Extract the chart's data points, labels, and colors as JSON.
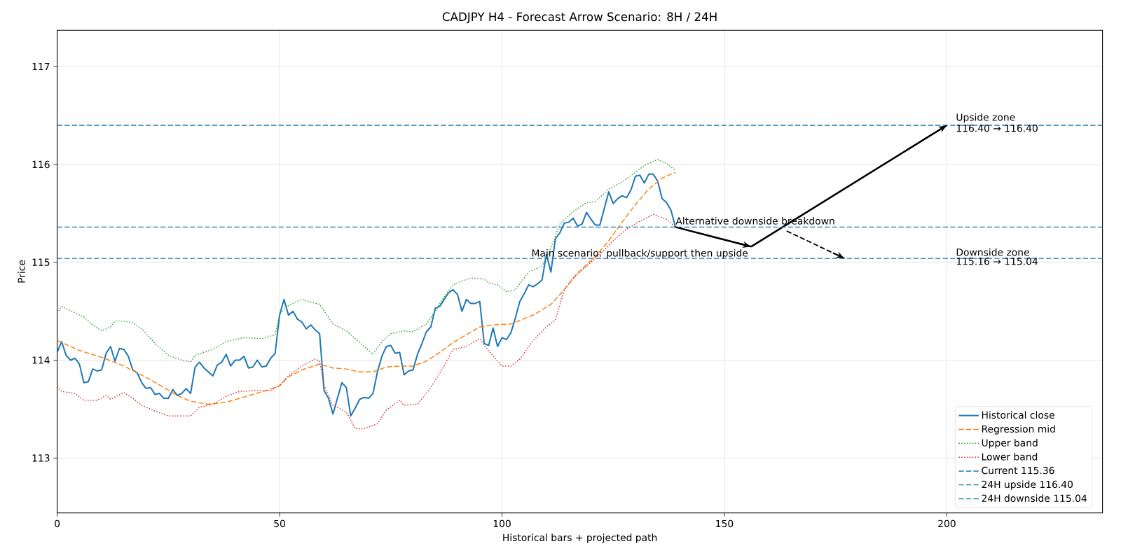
{
  "chart_data": {
    "type": "line",
    "title": "CADJPY H4 - Forecast Arrow Scenario: 8H / 24H",
    "xlabel": "Historical bars + projected path",
    "ylabel": "Price",
    "xlim": [
      0,
      235
    ],
    "ylim": [
      112.44,
      117.37
    ],
    "xticks": [
      0,
      50,
      100,
      150,
      200
    ],
    "yticks": [
      113,
      114,
      115,
      116,
      117
    ],
    "grid": true,
    "legend": "bottom right",
    "series": [
      {
        "name": "Historical close",
        "color": "#1f77b4",
        "line_style": "solid",
        "x": [
          0,
          1,
          2,
          3,
          4,
          5,
          6,
          7,
          8,
          9,
          10,
          11,
          12,
          13,
          14,
          15,
          16,
          17,
          18,
          19,
          20,
          21,
          22,
          23,
          24,
          25,
          26,
          27,
          28,
          29,
          30,
          31,
          32,
          33,
          34,
          35,
          36,
          37,
          38,
          39,
          40,
          41,
          42,
          43,
          44,
          45,
          46,
          47,
          48,
          49,
          50,
          51,
          52,
          53,
          54,
          55,
          56,
          57,
          58,
          59,
          60,
          61,
          62,
          63,
          64,
          65,
          66,
          67,
          68,
          69,
          70,
          71,
          72,
          73,
          74,
          75,
          76,
          77,
          78,
          79,
          80,
          81,
          82,
          83,
          84,
          85,
          86,
          87,
          88,
          89,
          90,
          91,
          92,
          93,
          94,
          95,
          96,
          97,
          98,
          99,
          100,
          101,
          102,
          103,
          104,
          105,
          106,
          107,
          108,
          109,
          110,
          111,
          112,
          113,
          114,
          115,
          116,
          117,
          118,
          119,
          120,
          121,
          122,
          123,
          124,
          125,
          126,
          127,
          128,
          129,
          130,
          131,
          132,
          133,
          134,
          135,
          136,
          137,
          138,
          139
        ],
        "values": [
          114.08,
          114.19,
          114.05,
          114.0,
          114.02,
          113.96,
          113.77,
          113.78,
          113.91,
          113.89,
          113.9,
          114.07,
          114.14,
          113.99,
          114.12,
          114.11,
          114.04,
          113.9,
          113.87,
          113.77,
          113.71,
          113.72,
          113.65,
          113.66,
          113.61,
          113.61,
          113.7,
          113.64,
          113.66,
          113.71,
          113.66,
          113.93,
          113.98,
          113.92,
          113.88,
          113.84,
          113.95,
          113.98,
          114.06,
          113.94,
          114.0,
          114.0,
          114.04,
          113.92,
          113.93,
          114.0,
          113.93,
          113.94,
          114.02,
          114.07,
          114.46,
          114.62,
          114.46,
          114.5,
          114.42,
          114.39,
          114.32,
          114.36,
          114.31,
          114.27,
          113.69,
          113.61,
          113.45,
          113.61,
          113.77,
          113.72,
          113.43,
          113.51,
          113.6,
          113.62,
          113.61,
          113.66,
          113.88,
          114.04,
          114.14,
          114.15,
          114.07,
          114.08,
          113.85,
          113.89,
          113.9,
          114.06,
          114.17,
          114.29,
          114.34,
          114.53,
          114.55,
          114.62,
          114.69,
          114.72,
          114.67,
          114.5,
          114.62,
          114.58,
          114.58,
          114.6,
          114.17,
          114.15,
          114.33,
          114.14,
          114.23,
          114.21,
          114.28,
          114.43,
          114.6,
          114.68,
          114.77,
          114.75,
          114.78,
          114.82,
          115.08,
          114.9,
          115.24,
          115.3,
          115.4,
          115.41,
          115.45,
          115.37,
          115.39,
          115.51,
          115.44,
          115.38,
          115.38,
          115.55,
          115.72,
          115.6,
          115.65,
          115.68,
          115.66,
          115.74,
          115.88,
          115.89,
          115.81,
          115.9,
          115.9,
          115.83,
          115.65,
          115.61,
          115.53,
          115.36
        ]
      },
      {
        "name": "Regression mid",
        "color": "#ff7f0e",
        "line_style": "dashed",
        "x": [
          0,
          5,
          7,
          10,
          15,
          18,
          21,
          24,
          27,
          30,
          34,
          38,
          41,
          44,
          47,
          50,
          52,
          55,
          59,
          62,
          65,
          68,
          71,
          74,
          77,
          80,
          83,
          86,
          89,
          92,
          95,
          98,
          102,
          107,
          111,
          114,
          117,
          121,
          124,
          127,
          130,
          133,
          136,
          139
        ],
        "values": [
          114.2,
          114.1,
          114.07,
          114.03,
          113.94,
          113.87,
          113.8,
          113.72,
          113.64,
          113.58,
          113.55,
          113.57,
          113.61,
          113.65,
          113.69,
          113.74,
          113.83,
          113.9,
          113.96,
          113.92,
          113.91,
          113.88,
          113.88,
          113.93,
          113.94,
          113.94,
          113.99,
          114.08,
          114.18,
          114.26,
          114.34,
          114.36,
          114.37,
          114.46,
          114.57,
          114.72,
          114.89,
          115.06,
          115.22,
          115.41,
          115.59,
          115.75,
          115.86,
          115.92
        ]
      },
      {
        "name": "Upper band",
        "color": "#2ca02c",
        "line_style": "dotted",
        "x": [
          0,
          1,
          6,
          8,
          10,
          12,
          13,
          15,
          17,
          19,
          22,
          25,
          28,
          30,
          31,
          35,
          38,
          42,
          46,
          49,
          50,
          52,
          55,
          59,
          62,
          65,
          68,
          71,
          73,
          75,
          78,
          80,
          83,
          85,
          87,
          89,
          91,
          93,
          96,
          97,
          99,
          101,
          103,
          106,
          109,
          111,
          113,
          116,
          119,
          121,
          124,
          127,
          130,
          132,
          135,
          137,
          139
        ],
        "values": [
          114.48,
          114.55,
          114.44,
          114.36,
          114.3,
          114.34,
          114.4,
          114.4,
          114.38,
          114.32,
          114.17,
          114.05,
          114.0,
          113.98,
          114.05,
          114.11,
          114.19,
          114.23,
          114.22,
          114.26,
          114.47,
          114.56,
          114.62,
          114.57,
          114.37,
          114.3,
          114.18,
          114.06,
          114.19,
          114.27,
          114.3,
          114.29,
          114.37,
          114.5,
          114.65,
          114.77,
          114.81,
          114.84,
          114.83,
          114.79,
          114.77,
          114.7,
          114.72,
          114.9,
          114.96,
          115.15,
          115.39,
          115.52,
          115.61,
          115.62,
          115.75,
          115.82,
          115.92,
          115.99,
          116.05,
          116.01,
          115.94
        ]
      },
      {
        "name": "Lower band",
        "color": "#d62728",
        "line_style": "dotted",
        "x": [
          0,
          1,
          4,
          6,
          9,
          11,
          12,
          15,
          17,
          19,
          22,
          25,
          28,
          30,
          32,
          35,
          38,
          41,
          45,
          48,
          50,
          52,
          55,
          58,
          59,
          60,
          62,
          65,
          67,
          69,
          72,
          74,
          77,
          78,
          81,
          84,
          87,
          89,
          92,
          95,
          96,
          99,
          100,
          102,
          104,
          107,
          110,
          112,
          114,
          116,
          119,
          122,
          125,
          128,
          131,
          134,
          137,
          139
        ],
        "values": [
          113.73,
          113.68,
          113.66,
          113.59,
          113.59,
          113.64,
          113.6,
          113.67,
          113.61,
          113.54,
          113.48,
          113.43,
          113.43,
          113.43,
          113.52,
          113.55,
          113.63,
          113.68,
          113.69,
          113.69,
          113.74,
          113.84,
          113.94,
          114.01,
          113.99,
          113.74,
          113.54,
          113.47,
          113.3,
          113.3,
          113.35,
          113.49,
          113.59,
          113.54,
          113.55,
          113.72,
          113.94,
          114.11,
          114.14,
          114.22,
          114.15,
          113.99,
          113.94,
          113.94,
          114.01,
          114.2,
          114.34,
          114.41,
          114.72,
          114.84,
          114.96,
          115.08,
          115.22,
          115.34,
          115.42,
          115.49,
          115.44,
          115.36
        ]
      },
      {
        "color": "#000000",
        "line_style": "solid",
        "x": [
          139,
          156
        ],
        "values": [
          115.36,
          115.16
        ]
      },
      {
        "color": "#000000",
        "line_style": "solid",
        "x": [
          156,
          200
        ],
        "values": [
          115.16,
          116.4
        ]
      },
      {
        "color": "#000000",
        "line_style": "dashed",
        "x": [
          164,
          177
        ],
        "values": [
          115.32,
          115.04
        ]
      }
    ],
    "ref_lines": [
      {
        "axis": "y",
        "value": 115.36,
        "label": "Current 115.36",
        "color": "#1f77b4",
        "line_style": "dashed"
      },
      {
        "axis": "y",
        "value": 116.4,
        "label": "24H upside 116.40",
        "color": "#1f77b4",
        "line_style": "dashed"
      },
      {
        "axis": "y",
        "value": 115.04,
        "label": "24H downside 115.04",
        "color": "#1f77b4",
        "line_style": "dashed"
      }
    ],
    "annotations": [
      {
        "text": "Main scenario: pullback/support then upside",
        "x": 156,
        "y": 115.16
      },
      {
        "text": "Alternative downside breakdown",
        "x": 139,
        "y": 115.36
      },
      {
        "text": "Upside zone",
        "x": 202,
        "y": 116.4
      },
      {
        "text": "116.40 → 116.40",
        "x": 202,
        "y": 116.4
      },
      {
        "text": "Downside zone",
        "x": 202,
        "y": 115.04
      },
      {
        "text": "115.16 → 115.04",
        "x": 202,
        "y": 115.04
      }
    ]
  }
}
